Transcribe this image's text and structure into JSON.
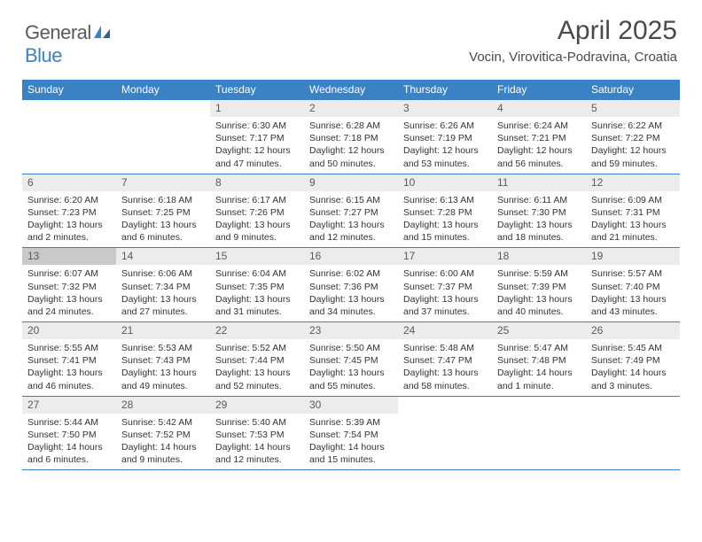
{
  "logo": {
    "text1": "General",
    "text2": "Blue"
  },
  "title": "April 2025",
  "location": "Vocin, Virovitica-Podravina, Croatia",
  "colors": {
    "header_bg": "#3b82c4",
    "header_text": "#ffffff",
    "daynum_bg": "#ececec",
    "today_bg": "#c9c9c9",
    "border": "#3b82c4",
    "text": "#333333",
    "logo_gray": "#5a5a5a",
    "logo_blue": "#3b82c4"
  },
  "dayNames": [
    "Sunday",
    "Monday",
    "Tuesday",
    "Wednesday",
    "Thursday",
    "Friday",
    "Saturday"
  ],
  "weeks": [
    [
      null,
      null,
      {
        "n": "1",
        "sr": "6:30 AM",
        "ss": "7:17 PM",
        "dl": "12 hours and 47 minutes."
      },
      {
        "n": "2",
        "sr": "6:28 AM",
        "ss": "7:18 PM",
        "dl": "12 hours and 50 minutes."
      },
      {
        "n": "3",
        "sr": "6:26 AM",
        "ss": "7:19 PM",
        "dl": "12 hours and 53 minutes."
      },
      {
        "n": "4",
        "sr": "6:24 AM",
        "ss": "7:21 PM",
        "dl": "12 hours and 56 minutes."
      },
      {
        "n": "5",
        "sr": "6:22 AM",
        "ss": "7:22 PM",
        "dl": "12 hours and 59 minutes."
      }
    ],
    [
      {
        "n": "6",
        "sr": "6:20 AM",
        "ss": "7:23 PM",
        "dl": "13 hours and 2 minutes."
      },
      {
        "n": "7",
        "sr": "6:18 AM",
        "ss": "7:25 PM",
        "dl": "13 hours and 6 minutes."
      },
      {
        "n": "8",
        "sr": "6:17 AM",
        "ss": "7:26 PM",
        "dl": "13 hours and 9 minutes."
      },
      {
        "n": "9",
        "sr": "6:15 AM",
        "ss": "7:27 PM",
        "dl": "13 hours and 12 minutes."
      },
      {
        "n": "10",
        "sr": "6:13 AM",
        "ss": "7:28 PM",
        "dl": "13 hours and 15 minutes."
      },
      {
        "n": "11",
        "sr": "6:11 AM",
        "ss": "7:30 PM",
        "dl": "13 hours and 18 minutes."
      },
      {
        "n": "12",
        "sr": "6:09 AM",
        "ss": "7:31 PM",
        "dl": "13 hours and 21 minutes."
      }
    ],
    [
      {
        "n": "13",
        "sr": "6:07 AM",
        "ss": "7:32 PM",
        "dl": "13 hours and 24 minutes.",
        "today": true
      },
      {
        "n": "14",
        "sr": "6:06 AM",
        "ss": "7:34 PM",
        "dl": "13 hours and 27 minutes."
      },
      {
        "n": "15",
        "sr": "6:04 AM",
        "ss": "7:35 PM",
        "dl": "13 hours and 31 minutes."
      },
      {
        "n": "16",
        "sr": "6:02 AM",
        "ss": "7:36 PM",
        "dl": "13 hours and 34 minutes."
      },
      {
        "n": "17",
        "sr": "6:00 AM",
        "ss": "7:37 PM",
        "dl": "13 hours and 37 minutes."
      },
      {
        "n": "18",
        "sr": "5:59 AM",
        "ss": "7:39 PM",
        "dl": "13 hours and 40 minutes."
      },
      {
        "n": "19",
        "sr": "5:57 AM",
        "ss": "7:40 PM",
        "dl": "13 hours and 43 minutes."
      }
    ],
    [
      {
        "n": "20",
        "sr": "5:55 AM",
        "ss": "7:41 PM",
        "dl": "13 hours and 46 minutes."
      },
      {
        "n": "21",
        "sr": "5:53 AM",
        "ss": "7:43 PM",
        "dl": "13 hours and 49 minutes."
      },
      {
        "n": "22",
        "sr": "5:52 AM",
        "ss": "7:44 PM",
        "dl": "13 hours and 52 minutes."
      },
      {
        "n": "23",
        "sr": "5:50 AM",
        "ss": "7:45 PM",
        "dl": "13 hours and 55 minutes."
      },
      {
        "n": "24",
        "sr": "5:48 AM",
        "ss": "7:47 PM",
        "dl": "13 hours and 58 minutes."
      },
      {
        "n": "25",
        "sr": "5:47 AM",
        "ss": "7:48 PM",
        "dl": "14 hours and 1 minute."
      },
      {
        "n": "26",
        "sr": "5:45 AM",
        "ss": "7:49 PM",
        "dl": "14 hours and 3 minutes."
      }
    ],
    [
      {
        "n": "27",
        "sr": "5:44 AM",
        "ss": "7:50 PM",
        "dl": "14 hours and 6 minutes."
      },
      {
        "n": "28",
        "sr": "5:42 AM",
        "ss": "7:52 PM",
        "dl": "14 hours and 9 minutes."
      },
      {
        "n": "29",
        "sr": "5:40 AM",
        "ss": "7:53 PM",
        "dl": "14 hours and 12 minutes."
      },
      {
        "n": "30",
        "sr": "5:39 AM",
        "ss": "7:54 PM",
        "dl": "14 hours and 15 minutes."
      },
      null,
      null,
      null
    ]
  ],
  "labels": {
    "sunrise": "Sunrise:",
    "sunset": "Sunset:",
    "daylight": "Daylight:"
  }
}
